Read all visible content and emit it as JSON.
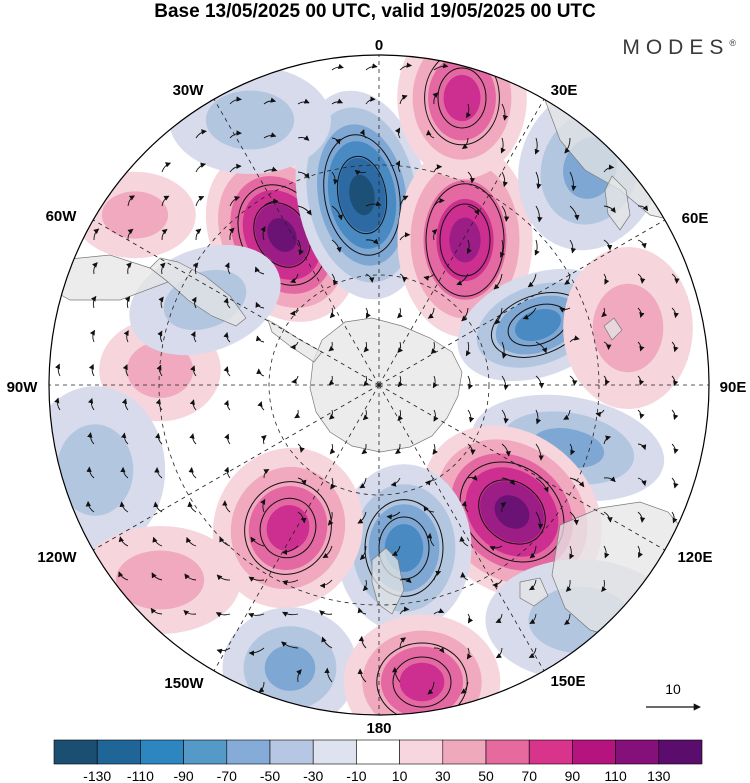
{
  "header": {
    "title": "Base 13/05/2025 00 UTC, valid 19/05/2025 00 UTC",
    "brand": "MODES",
    "brand_mark": "®"
  },
  "map": {
    "projection": "south-polar-stereographic",
    "longitude_labels": [
      "0",
      "30E",
      "60E",
      "90E",
      "120E",
      "150E",
      "180",
      "150W",
      "120W",
      "90W",
      "60W",
      "30W"
    ],
    "reference_vector": {
      "label": "10"
    }
  },
  "colorbar": {
    "tick_labels": [
      "-130",
      "-110",
      "-90",
      "-70",
      "-50",
      "-30",
      "-10",
      "10",
      "30",
      "50",
      "70",
      "90",
      "110",
      "130"
    ],
    "colors": [
      "#1b4f72",
      "#1f6597",
      "#2e86c1",
      "#5499c7",
      "#85acd9",
      "#b6c7e3",
      "#dfe3f0",
      "#ffffff",
      "#f7d6df",
      "#f0a8bd",
      "#e76a9e",
      "#d8348c",
      "#b5147f",
      "#861079",
      "#5a0d6d"
    ],
    "anomaly_fill": {
      "pos": [
        "#f6d5dd",
        "#f0a9be",
        "#e468a1",
        "#cc2f8f",
        "#9b1d85",
        "#6b1375"
      ],
      "neg": [
        "#d7dbec",
        "#b3c6e0",
        "#7fa7d4",
        "#4a8ac2",
        "#2d6aa3",
        "#1d5076"
      ]
    }
  },
  "colors": {
    "land": "#e6e6e6",
    "land_edge": "#7a7a7a",
    "grid": "#222222",
    "stream": "#111111"
  }
}
